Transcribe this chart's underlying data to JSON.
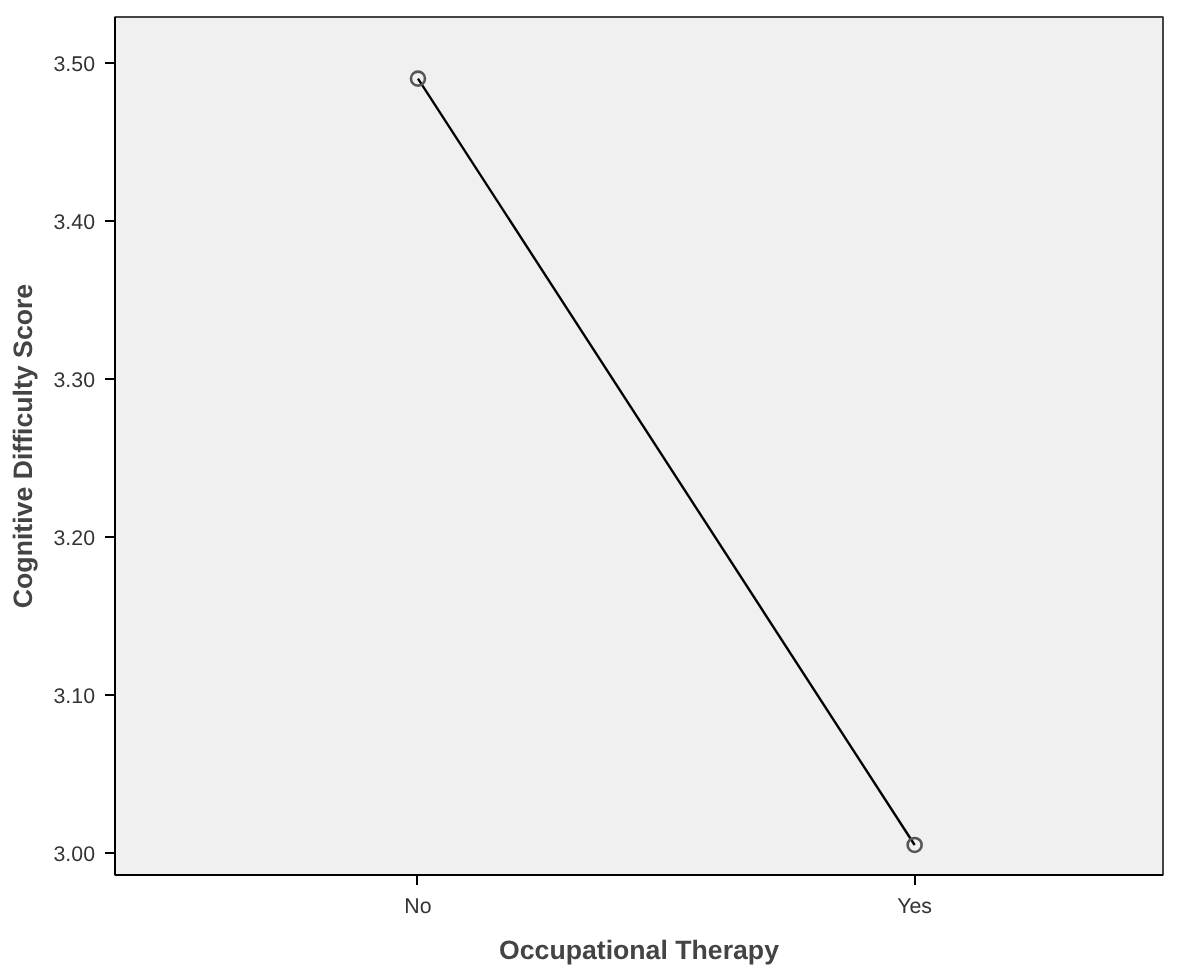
{
  "chart_data": {
    "type": "line",
    "xlabel": "Occupational Therapy",
    "ylabel": "Cognitive Difficulty Score",
    "categories": [
      "No",
      "Yes"
    ],
    "series": [
      {
        "color": "#000000",
        "values": [
          3.49,
          3.005
        ]
      }
    ],
    "ylim": [
      2.986,
      3.529
    ],
    "yticks": [
      {
        "value": 3.0,
        "label": "3.00"
      },
      {
        "value": 3.1,
        "label": "3.10"
      },
      {
        "value": 3.2,
        "label": "3.20"
      },
      {
        "value": 3.3,
        "label": "3.30"
      },
      {
        "value": 3.4,
        "label": "3.40"
      },
      {
        "value": 3.5,
        "label": "3.50"
      }
    ],
    "marker": "circle",
    "line_style": "solid",
    "grid": false
  }
}
